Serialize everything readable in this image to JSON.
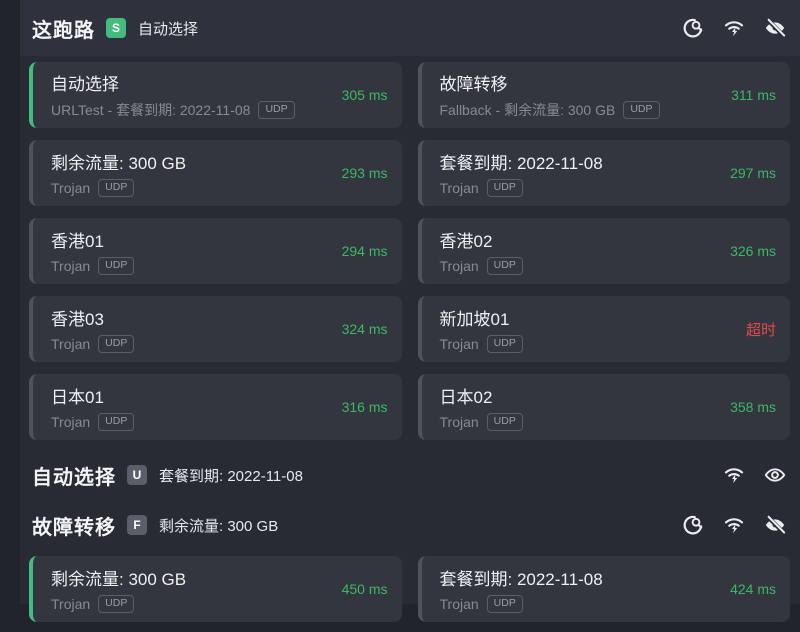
{
  "colors": {
    "accent_green": "#43bd7d",
    "latency_green": "#3cb863",
    "timeout_red": "#e14b4b"
  },
  "pill_udp": "UDP",
  "groups": [
    {
      "name": "这跑路",
      "badge": "S",
      "badge_style": "green",
      "current": "自动选择",
      "icons": [
        "speedtest",
        "wifi",
        "eye-off"
      ],
      "proxies": [
        {
          "name": "自动选择",
          "detail": "URLTest - 套餐到期: 2022-11-08",
          "udp": true,
          "latency": "305 ms",
          "selected": true
        },
        {
          "name": "故障转移",
          "detail": "Fallback - 剩余流量: 300 GB",
          "udp": true,
          "latency": "311 ms"
        },
        {
          "name": "剩余流量: 300 GB",
          "detail": "Trojan",
          "udp": true,
          "latency": "293 ms"
        },
        {
          "name": "套餐到期: 2022-11-08",
          "detail": "Trojan",
          "udp": true,
          "latency": "297 ms"
        },
        {
          "name": "香港01",
          "detail": "Trojan",
          "udp": true,
          "latency": "294 ms"
        },
        {
          "name": "香港02",
          "detail": "Trojan",
          "udp": true,
          "latency": "326 ms"
        },
        {
          "name": "香港03",
          "detail": "Trojan",
          "udp": true,
          "latency": "324 ms"
        },
        {
          "name": "新加坡01",
          "detail": "Trojan",
          "udp": true,
          "latency": "超时",
          "timeout": true
        },
        {
          "name": "日本01",
          "detail": "Trojan",
          "udp": true,
          "latency": "316 ms"
        },
        {
          "name": "日本02",
          "detail": "Trojan",
          "udp": true,
          "latency": "358 ms"
        }
      ]
    },
    {
      "name": "自动选择",
      "badge": "U",
      "badge_style": "gray",
      "current": "套餐到期: 2022-11-08",
      "icons": [
        "wifi",
        "eye"
      ],
      "proxies": []
    },
    {
      "name": "故障转移",
      "badge": "F",
      "badge_style": "gray",
      "current": "剩余流量: 300 GB",
      "icons": [
        "speedtest",
        "wifi",
        "eye-off"
      ],
      "proxies": [
        {
          "name": "剩余流量: 300 GB",
          "detail": "Trojan",
          "udp": true,
          "latency": "450 ms",
          "selected": true
        },
        {
          "name": "套餐到期: 2022-11-08",
          "detail": "Trojan",
          "udp": true,
          "latency": "424 ms"
        }
      ]
    }
  ]
}
